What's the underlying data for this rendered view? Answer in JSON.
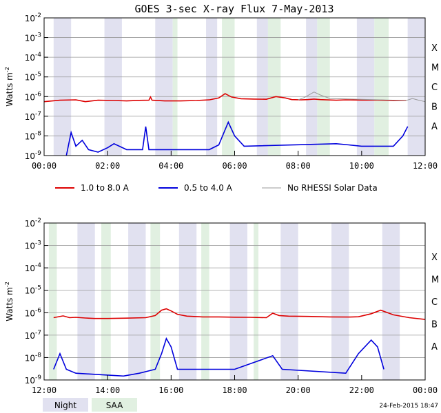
{
  "title": "GOES 3-sec X-ray Flux     7-May-2013",
  "timestamp": "24-Feb-2015 18:47",
  "colors": {
    "night": "#e1e1f0",
    "saa": "#e1f0e1",
    "long_channel": "#dd0000",
    "short_channel": "#0000dd",
    "no_rhessi": "#999999",
    "grid": "#999999"
  },
  "legend": {
    "long": "1.0 to 8.0 A",
    "short": "0.5 to 4.0 A",
    "gray": "No RHESSI Solar Data"
  },
  "shading_legend": {
    "night": "Night",
    "saa": "SAA"
  },
  "flare_classes": [
    "X",
    "M",
    "C",
    "B",
    "A"
  ],
  "chart_data": [
    {
      "type": "line",
      "title": "GOES 3-sec X-ray Flux     7-May-2013",
      "ylabel_base": "Watts m",
      "ylabel_sup": "-2",
      "yscale": "log",
      "ylim": [
        1e-09,
        0.01
      ],
      "yticks": [
        {
          "b": "10",
          "e": "-2"
        },
        {
          "b": "10",
          "e": "-3"
        },
        {
          "b": "10",
          "e": "-4"
        },
        {
          "b": "10",
          "e": "-5"
        },
        {
          "b": "10",
          "e": "-6"
        },
        {
          "b": "10",
          "e": "-7"
        },
        {
          "b": "10",
          "e": "-8"
        },
        {
          "b": "10",
          "e": "-9"
        }
      ],
      "xlim_hours": [
        0,
        12
      ],
      "xtick_labels": [
        "00:00",
        "02:00",
        "04:00",
        "06:00",
        "08:00",
        "10:00",
        "12:00"
      ],
      "night_intervals": [
        [
          0.3,
          0.85
        ],
        [
          1.9,
          2.45
        ],
        [
          3.5,
          4.05
        ],
        [
          5.1,
          5.45
        ],
        [
          6.7,
          7.05
        ],
        [
          8.25,
          8.6
        ],
        [
          9.85,
          10.4
        ],
        [
          11.45,
          12.0
        ]
      ],
      "saa_intervals": [
        [
          4.05,
          4.2
        ],
        [
          5.6,
          6.0
        ],
        [
          7.05,
          7.45
        ],
        [
          8.6,
          9.0
        ],
        [
          10.4,
          10.85
        ]
      ],
      "series": [
        {
          "name": "1.0 to 8.0 A",
          "color": "#dd0000",
          "x": [
            0,
            0.5,
            1.0,
            1.3,
            1.7,
            2.2,
            2.6,
            3.0,
            3.3,
            3.35,
            3.4,
            3.8,
            4.3,
            4.8,
            5.2,
            5.5,
            5.7,
            5.9,
            6.2,
            6.6,
            7.0,
            7.3,
            7.6,
            7.8,
            8.1,
            8.3,
            8.5,
            8.7,
            8.9,
            9.2,
            9.5,
            10.0,
            10.5,
            11.0,
            11.4
          ],
          "y": [
            5.5e-07,
            6.5e-07,
            6.8e-07,
            5.5e-07,
            6.5e-07,
            6.3e-07,
            6e-07,
            6.4e-07,
            6.5e-07,
            9.5e-07,
            6.5e-07,
            6e-07,
            6e-07,
            6.3e-07,
            6.8e-07,
            8.5e-07,
            1.4e-06,
            9.5e-07,
            7.8e-07,
            7.5e-07,
            7.3e-07,
            1e-06,
            8.5e-07,
            7e-07,
            6.8e-07,
            7e-07,
            7.5e-07,
            7e-07,
            6.8e-07,
            6.5e-07,
            6.8e-07,
            6.6e-07,
            6.6e-07,
            6.2e-07,
            6.3e-07
          ]
        },
        {
          "name": "No RHESSI Solar Data",
          "color": "#999999",
          "x": [
            11.4,
            11.6,
            11.8,
            12.0,
            8.0,
            8.2,
            8.5,
            8.7,
            9.0
          ],
          "y": [
            6.3e-07,
            8e-07,
            6.5e-07,
            5.5e-07,
            6.8e-07,
            9e-07,
            1.7e-06,
            1.2e-06,
            8e-07
          ]
        },
        {
          "name": "0.5 to 4.0 A",
          "color": "#0000dd",
          "x": [
            0.7,
            0.85,
            1.0,
            1.2,
            1.4,
            1.7,
            2.0,
            2.2,
            2.6,
            3.1,
            3.2,
            3.3,
            5.2,
            5.5,
            5.8,
            6.0,
            6.3,
            9.2,
            9.6,
            10.0,
            11.0,
            11.3,
            11.45
          ],
          "y": [
            1e-09,
            1.5e-08,
            3e-09,
            6e-09,
            2e-09,
            1.5e-09,
            2.5e-09,
            4e-09,
            2e-09,
            2e-09,
            3e-08,
            2e-09,
            2e-09,
            3.5e-09,
            5e-08,
            1e-08,
            3e-09,
            4e-09,
            3.5e-09,
            3e-09,
            3e-09,
            1e-08,
            3e-08
          ]
        }
      ]
    },
    {
      "type": "line",
      "ylabel_base": "Watts m",
      "ylabel_sup": "-2",
      "yscale": "log",
      "ylim": [
        1e-09,
        0.01
      ],
      "yticks": [
        {
          "b": "10",
          "e": "-2"
        },
        {
          "b": "10",
          "e": "-3"
        },
        {
          "b": "10",
          "e": "-4"
        },
        {
          "b": "10",
          "e": "-5"
        },
        {
          "b": "10",
          "e": "-6"
        },
        {
          "b": "10",
          "e": "-7"
        },
        {
          "b": "10",
          "e": "-8"
        },
        {
          "b": "10",
          "e": "-9"
        }
      ],
      "xlim_hours": [
        12,
        24
      ],
      "xtick_labels": [
        "12:00",
        "14:00",
        "16:00",
        "18:00",
        "20:00",
        "22:00",
        "00:00"
      ],
      "night_intervals": [
        [
          13.05,
          13.6
        ],
        [
          14.65,
          15.2
        ],
        [
          16.25,
          16.8
        ],
        [
          17.85,
          18.4
        ],
        [
          19.45,
          20.0
        ],
        [
          21.05,
          21.6
        ],
        [
          22.65,
          23.2
        ]
      ],
      "saa_intervals": [
        [
          12.15,
          12.4
        ],
        [
          13.8,
          14.1
        ],
        [
          15.35,
          15.65
        ],
        [
          16.95,
          17.2
        ],
        [
          18.6,
          18.75
        ]
      ],
      "series": [
        {
          "name": "1.0 to 8.0 A",
          "color": "#dd0000",
          "x": [
            12.3,
            12.6,
            12.8,
            13.0,
            13.3,
            13.6,
            14.0,
            14.6,
            15.2,
            15.5,
            15.7,
            15.85,
            16.0,
            16.2,
            16.5,
            17.0,
            17.5,
            18.0,
            18.5,
            19.0,
            19.2,
            19.4,
            19.7,
            20.3,
            21.0,
            21.6,
            21.9,
            22.3,
            22.6,
            23.0,
            23.5,
            24.0
          ],
          "y": [
            6e-07,
            7.2e-07,
            6e-07,
            6.2e-07,
            5.8e-07,
            5.5e-07,
            5.5e-07,
            5.7e-07,
            6e-07,
            7.5e-07,
            1.3e-06,
            1.5e-06,
            1.2e-06,
            8.5e-07,
            7e-07,
            6.5e-07,
            6.5e-07,
            6.3e-07,
            6.2e-07,
            6e-07,
            9.5e-07,
            7.5e-07,
            7e-07,
            6.8e-07,
            6.5e-07,
            6.4e-07,
            6.6e-07,
            9e-07,
            1.3e-06,
            8e-07,
            6e-07,
            5e-07
          ]
        },
        {
          "name": "0.5 to 4.0 A",
          "color": "#0000dd",
          "x": [
            12.3,
            12.5,
            12.7,
            13.0,
            14.5,
            15.0,
            15.5,
            15.7,
            15.85,
            16.0,
            16.2,
            18.0,
            19.2,
            19.5,
            21.5,
            21.9,
            22.3,
            22.5,
            22.7
          ],
          "y": [
            3e-09,
            1.5e-08,
            3e-09,
            2e-09,
            1.5e-09,
            2e-09,
            3e-09,
            1.5e-08,
            7e-08,
            3e-08,
            3e-09,
            3e-09,
            1.2e-08,
            3e-09,
            2e-09,
            1.5e-08,
            6e-08,
            3e-08,
            3e-09
          ]
        }
      ]
    }
  ]
}
